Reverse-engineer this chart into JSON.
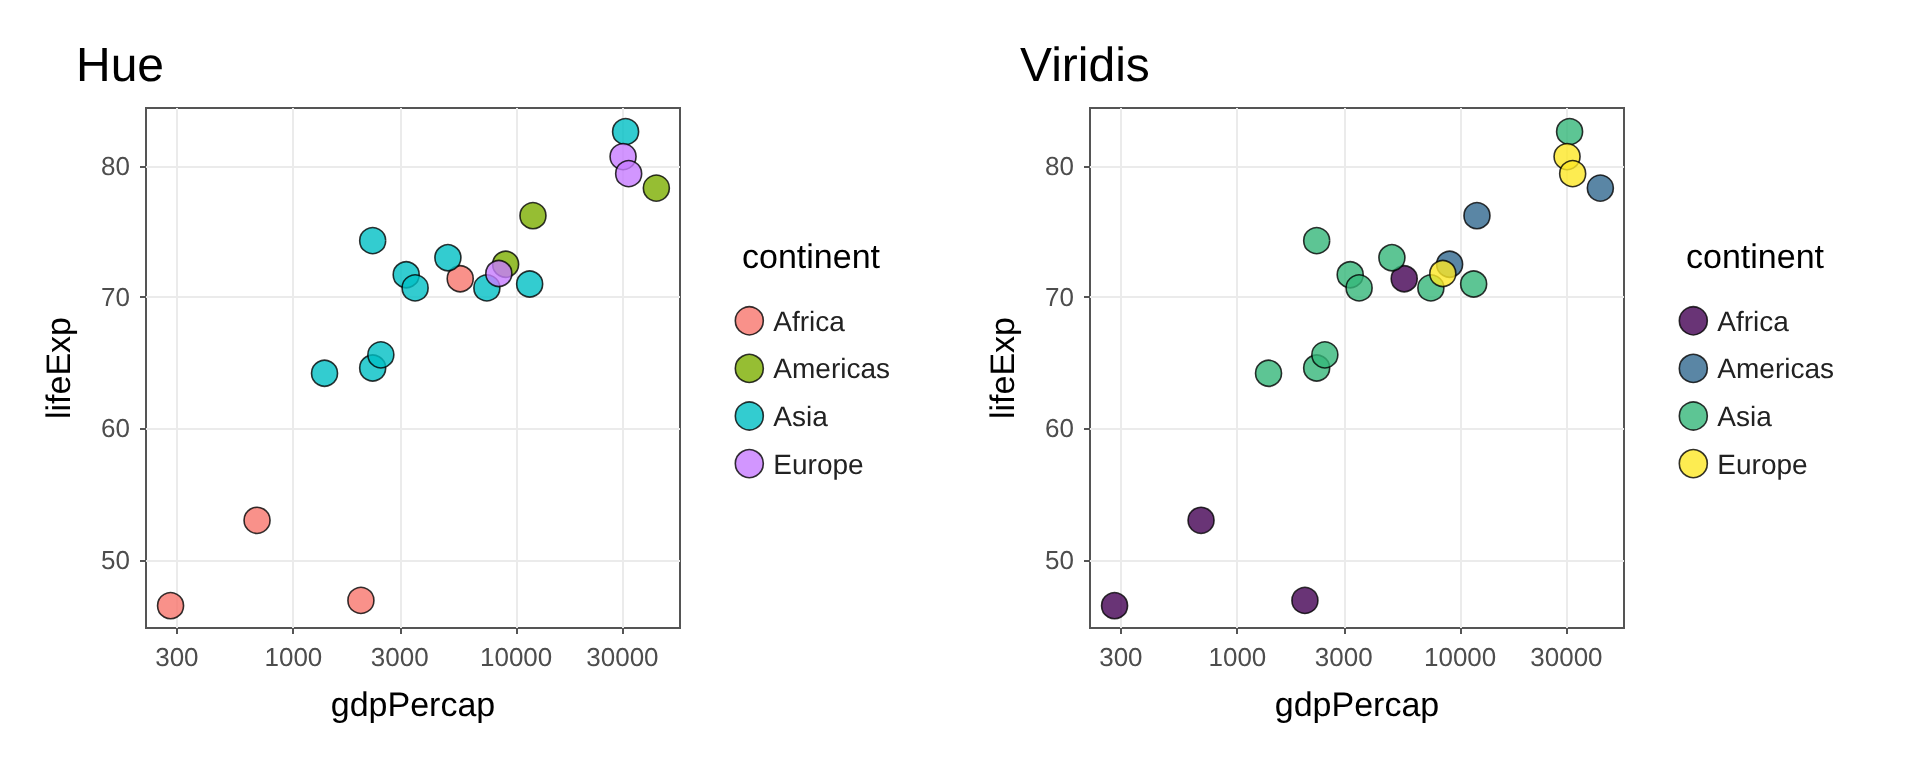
{
  "chart_data": [
    {
      "type": "scatter",
      "title": "Hue",
      "xlabel": "gdpPercap",
      "ylabel": "lifeExp",
      "legend_title": "continent",
      "legend": "right",
      "log": "x",
      "grid": true,
      "marker": "circle",
      "xlim": [
        218,
        54400
      ],
      "ylim": [
        44.8,
        84.4
      ],
      "xticks": [
        300,
        1000,
        3000,
        10000,
        30000
      ],
      "yticks": [
        50,
        60,
        70,
        80
      ],
      "series": [
        {
          "name": "Africa",
          "color": "#f8766d",
          "x": [
            281,
            687,
            2010,
            5610
          ],
          "values": [
            46.5,
            53.0,
            46.9,
            71.4
          ]
        },
        {
          "name": "Americas",
          "color": "#7cae00",
          "x": [
            11900,
            8970,
            42600
          ],
          "values": [
            76.2,
            72.5,
            78.3
          ]
        },
        {
          "name": "Asia",
          "color": "#00bfc4",
          "x": [
            31000,
            2270,
            3210,
            3520,
            4940,
            7390,
            11500,
            1380,
            2270,
            2470
          ],
          "values": [
            82.6,
            74.3,
            71.7,
            70.7,
            73.0,
            70.7,
            71.0,
            64.2,
            64.6,
            65.6
          ]
        },
        {
          "name": "Europe",
          "color": "#c77cff",
          "x": [
            30200,
            32000,
            8360
          ],
          "values": [
            80.7,
            79.4,
            71.8
          ]
        }
      ]
    },
    {
      "type": "scatter",
      "title": "Viridis",
      "xlabel": "gdpPercap",
      "ylabel": "lifeExp",
      "legend_title": "continent",
      "legend": "right",
      "log": "x",
      "grid": true,
      "marker": "circle",
      "xlim": [
        218,
        54400
      ],
      "ylim": [
        44.8,
        84.4
      ],
      "xticks": [
        300,
        1000,
        3000,
        10000,
        30000
      ],
      "yticks": [
        50,
        60,
        70,
        80
      ],
      "series": [
        {
          "name": "Africa",
          "color": "#440154",
          "x": [
            281,
            687,
            2010,
            5610
          ],
          "values": [
            46.5,
            53.0,
            46.9,
            71.4
          ]
        },
        {
          "name": "Americas",
          "color": "#31688e",
          "x": [
            11900,
            8970,
            42600
          ],
          "values": [
            76.2,
            72.5,
            78.3
          ]
        },
        {
          "name": "Asia",
          "color": "#35b779",
          "x": [
            31000,
            2270,
            3210,
            3520,
            4940,
            7390,
            11500,
            1380,
            2270,
            2470
          ],
          "values": [
            82.6,
            74.3,
            71.7,
            70.7,
            73.0,
            70.7,
            71.0,
            64.2,
            64.6,
            65.6
          ]
        },
        {
          "name": "Europe",
          "color": "#fde725",
          "x": [
            30200,
            32000,
            8360
          ],
          "values": [
            80.7,
            79.4,
            71.8
          ]
        }
      ]
    }
  ]
}
